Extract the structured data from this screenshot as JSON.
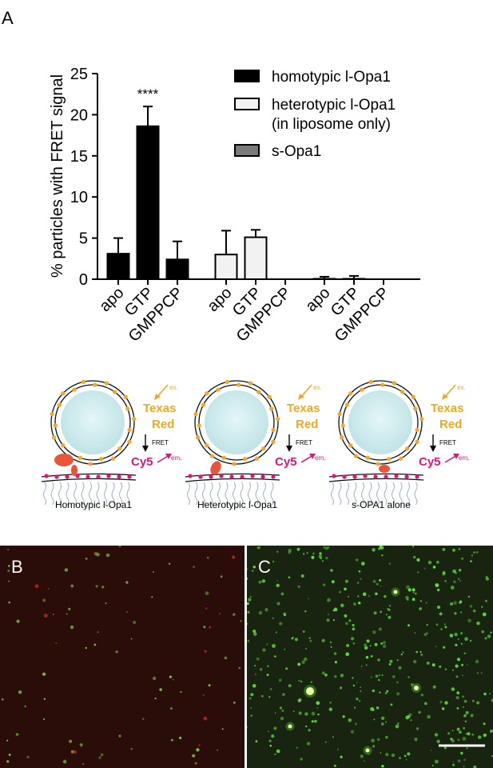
{
  "panels": {
    "a": "A",
    "b": "B",
    "c": "C"
  },
  "chart_data": {
    "type": "bar",
    "ylabel": "% particles with FRET signal",
    "ylim": [
      0,
      25
    ],
    "yticks": [
      0,
      5,
      10,
      15,
      20,
      25
    ],
    "groups": [
      {
        "name": "homotypic l-Opa1",
        "fill": "#000000",
        "categories": [
          "apo",
          "GTP",
          "GMPPCP"
        ],
        "values": [
          3.1,
          18.6,
          2.4
        ],
        "errors": [
          1.9,
          2.4,
          2.2
        ]
      },
      {
        "name": "heterotypic l-Opa1 (in liposome only)",
        "fill": "#f2f2f2",
        "categories": [
          "apo",
          "GTP",
          "GMPPCP"
        ],
        "values": [
          3.0,
          5.1,
          0
        ],
        "errors": [
          2.9,
          0.9,
          0
        ]
      },
      {
        "name": "s-Opa1",
        "fill": "#7a7a7a",
        "categories": [
          "apo",
          "GTP",
          "GMPPCP"
        ],
        "values": [
          0.05,
          0.05,
          0
        ],
        "errors": [
          0.25,
          0.35,
          0
        ]
      }
    ],
    "annotations": [
      {
        "category": "GTP",
        "group": "homotypic l-Opa1",
        "text": "****"
      }
    ],
    "legend": {
      "placement": "top-right",
      "entries": [
        "homotypic l-Opa1",
        "heterotypic l-Opa1",
        "(in liposome only)",
        "s-Opa1"
      ]
    }
  },
  "schematic": {
    "texas_red": [
      "Texas",
      "Red"
    ],
    "ex": "ex.",
    "fret": "FRET",
    "cy5": "Cy5",
    "em": "em.",
    "captions": [
      "Homotypic l-Opa1",
      "Heterotypic l-Opa1",
      "s-OPA1 alone"
    ]
  },
  "colors": {
    "orange": "#f5a623",
    "magenta": "#e0157a",
    "liposome": "#bfe3e6",
    "protein": "#e8553a",
    "lipid_tail": "#9aaed6"
  }
}
